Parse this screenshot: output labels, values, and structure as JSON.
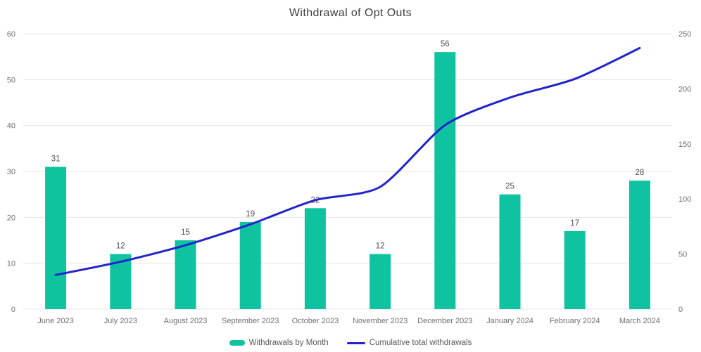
{
  "title": "Withdrawal of Opt Outs",
  "legend": {
    "bar_label": "Withdrawals by Month",
    "line_label": "Cumulative total withdrawals"
  },
  "colors": {
    "bar": "#0fc3a1",
    "line": "#2323cb",
    "grid": "#e4e4e4",
    "tick_text": "#6f6f6f",
    "bar_label_text": "#4f4f4f",
    "title_text": "#3d3d3d"
  },
  "chart_data": {
    "type": "bar+line",
    "title": "Withdrawal of Opt Outs",
    "categories": [
      "June 2023",
      "July 2023",
      "August 2023",
      "September 2023",
      "October 2023",
      "November 2023",
      "December 2023",
      "January 2024",
      "February 2024",
      "March 2024"
    ],
    "series": [
      {
        "name": "Withdrawals by Month",
        "type": "bar",
        "axis": "left",
        "color": "#0fc3a1",
        "values": [
          31,
          12,
          15,
          19,
          22,
          12,
          56,
          25,
          17,
          28
        ],
        "data_labels_shown": true
      },
      {
        "name": "Cumulative total withdrawals",
        "type": "line",
        "axis": "right",
        "color": "#2323cb",
        "values": [
          31,
          43,
          58,
          77,
          99,
          111,
          167,
          192,
          209,
          237
        ],
        "data_labels_shown": false
      }
    ],
    "left_axis": {
      "min": 0,
      "max": 60,
      "ticks": [
        0,
        10,
        20,
        30,
        40,
        50,
        60
      ]
    },
    "right_axis": {
      "min": 0,
      "max": 250,
      "ticks": [
        0,
        50,
        100,
        150,
        200,
        250
      ]
    },
    "grid": "horizontal",
    "legend_position": "bottom"
  }
}
